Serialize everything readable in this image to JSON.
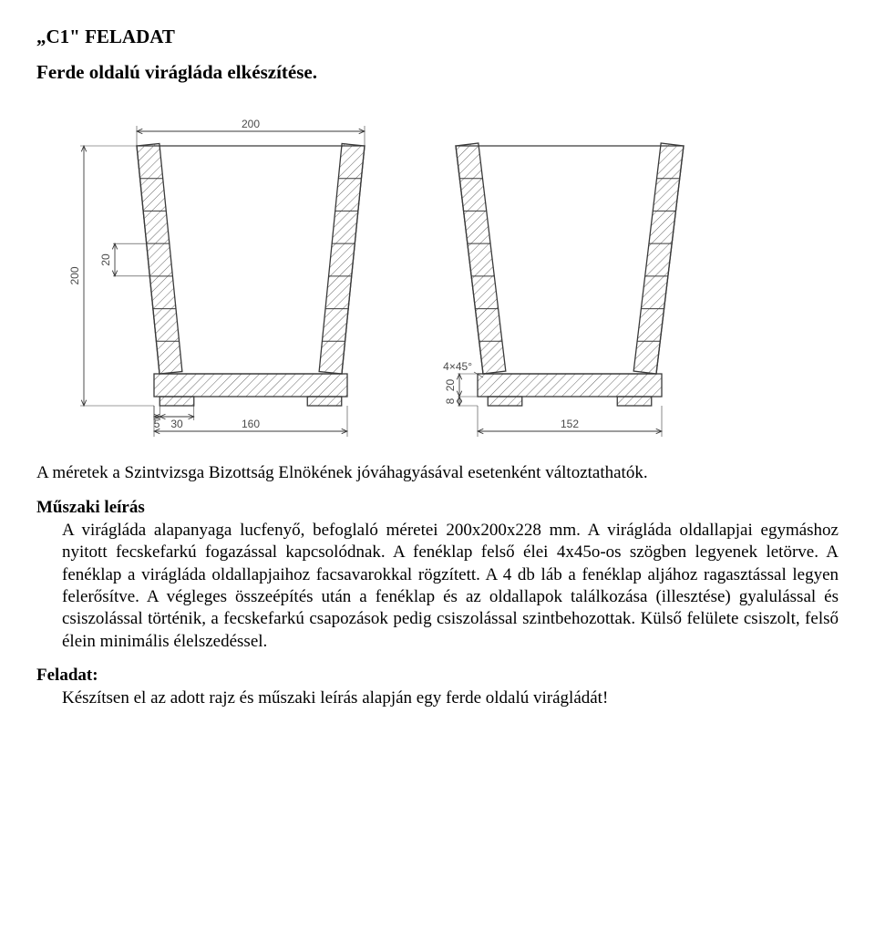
{
  "title": "„C1\" FELADAT",
  "subtitle": "Ferde oldalú virágláda elkészítése.",
  "caption": "A méretek a Szintvizsga Bizottság Elnökének jóváhagyásával esetenként változtathatók.",
  "section_tech_head": "Műszaki leírás",
  "tech_body": "A virágláda alapanyaga lucfenyő, befoglaló méretei 200x200x228 mm. A virágláda oldallapjai egymáshoz nyitott fecskefarkú fogazással kapcsolódnak. A fenéklap felső élei 4x45o-os szögben legyenek letörve. A fenéklap a virágláda oldallapjaihoz facsavarokkal rögzített. A 4 db láb a fenéklap aljához ragasztással legyen felerősítve. A végleges összeépítés után a fenéklap és az oldallapok találkozása (illesztése) gyalulással és csiszolással történik, a fecskefarkú csapozások pedig csiszolással szintbehozottak. Külső felülete csiszolt, felső élein minimális élelszedéssel.",
  "section_task_head": "Feladat:",
  "task_body": "Készítsen el az adott rajz és műszaki leírás alapján egy ferde oldalú virágládát!",
  "drawing": {
    "type": "technical-diagram",
    "stroke": "#3a3a3a",
    "stroke_width": 1.3,
    "hatch_stroke": "#555555",
    "hatch_width": 0.9,
    "background": "#ffffff",
    "dim_text_color": "#4a4a4a",
    "dim_fontsize": 12,
    "dims": {
      "top_width": "200",
      "height": "200",
      "slat_h": "20",
      "foot_offset": "5",
      "foot_w": "30",
      "bottom_left": "160",
      "bottom_right": "152",
      "chamfer": "4×45°",
      "base_h": "20",
      "foot_h": "8"
    },
    "views": [
      {
        "name": "front-view",
        "top_outer": 200,
        "bottom_outer": 160,
        "body_height": 200,
        "wall_thickness": 20,
        "slats": 7,
        "base_thickness": 20,
        "foot": {
          "w": 30,
          "h": 8,
          "inset": 5
        }
      },
      {
        "name": "side-view",
        "top_outer": 200,
        "bottom_outer": 152,
        "body_height": 200,
        "wall_thickness": 20,
        "slats": 7,
        "base_thickness": 20,
        "foot": {
          "w": 30,
          "h": 8,
          "inset": 9
        }
      }
    ]
  }
}
